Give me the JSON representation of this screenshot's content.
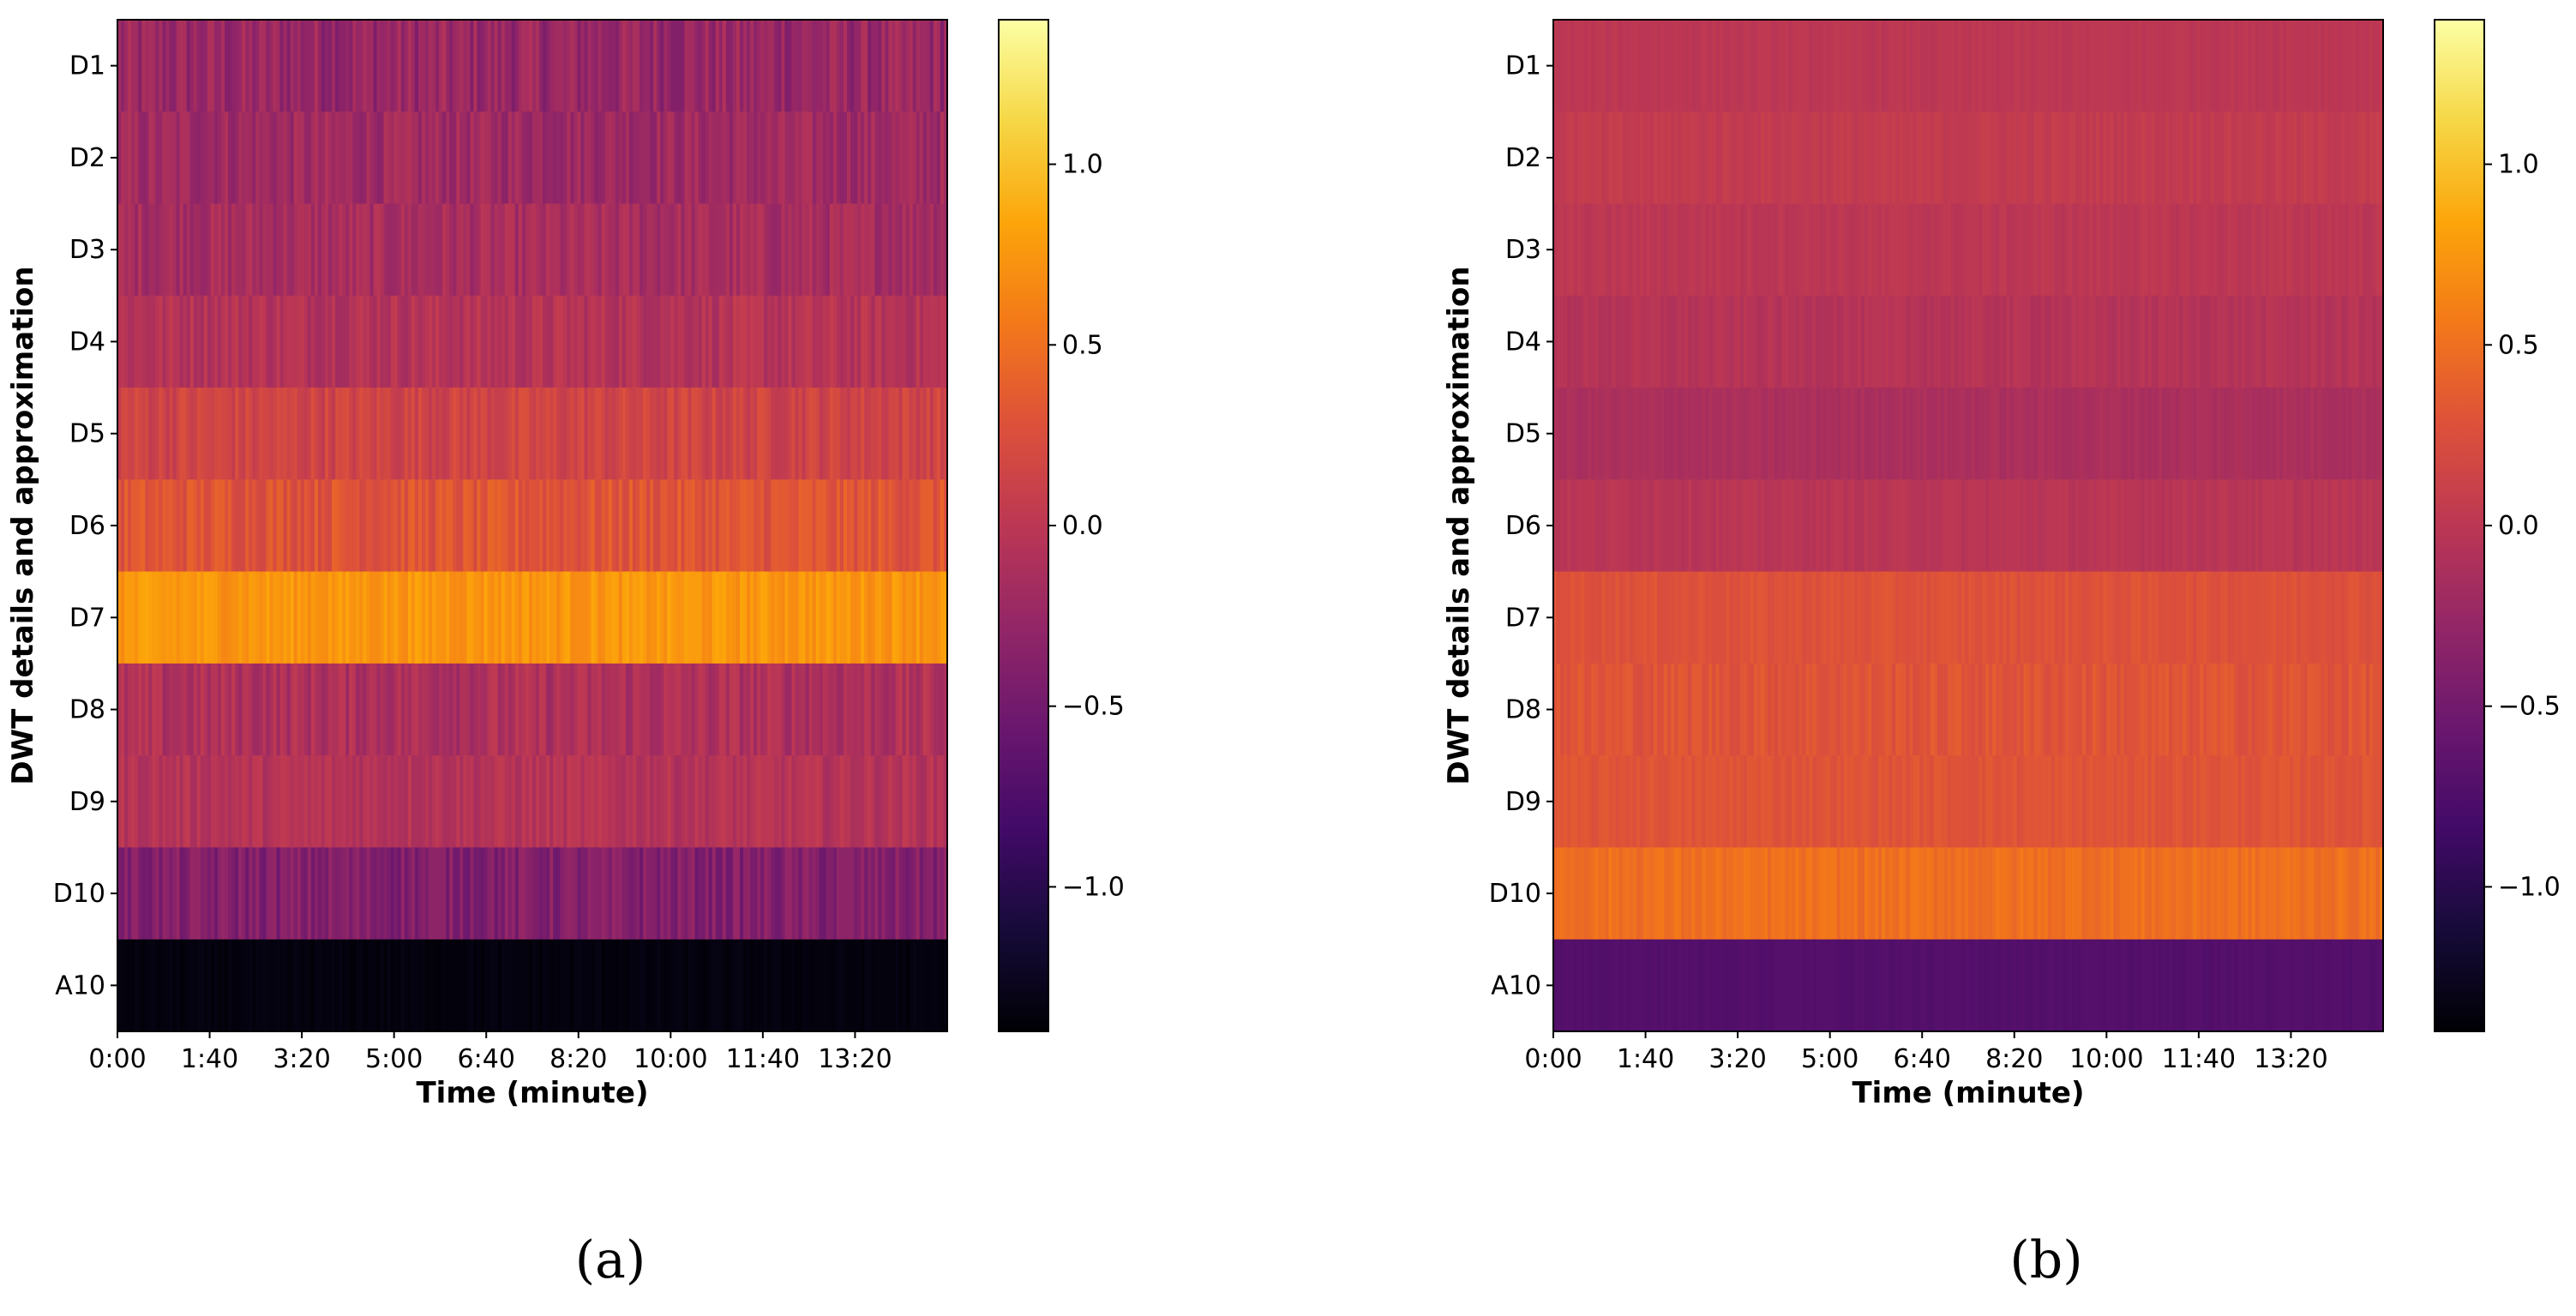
{
  "chart_data": [
    {
      "type": "heatmap",
      "panel_label": "(a)",
      "title": "",
      "xlabel": "Time (minute)",
      "ylabel": "DWT details and approximation",
      "x_ticks": [
        "0:00",
        "1:40",
        "3:20",
        "5:00",
        "6:40",
        "8:20",
        "10:00",
        "11:40",
        "13:20"
      ],
      "x_tick_seconds": [
        0,
        100,
        200,
        300,
        400,
        500,
        600,
        700,
        800
      ],
      "x_range_seconds": [
        0,
        900
      ],
      "rows": [
        "D1",
        "D2",
        "D3",
        "D4",
        "D5",
        "D6",
        "D7",
        "D8",
        "D9",
        "D10",
        "A10"
      ],
      "row_mean_values": [
        -0.25,
        -0.2,
        -0.15,
        -0.05,
        0.15,
        0.3,
        0.75,
        -0.1,
        -0.05,
        -0.4,
        -1.35
      ],
      "row_variability": [
        0.18,
        0.14,
        0.13,
        0.12,
        0.12,
        0.13,
        0.1,
        0.14,
        0.1,
        0.15,
        0.03
      ],
      "colorbar": {
        "colormap": "inferno",
        "vmin": -1.4,
        "vmax": 1.4,
        "ticks": [
          1.0,
          0.5,
          0.0,
          -0.5,
          -1.0
        ],
        "tick_labels": [
          "1.0",
          "0.5",
          "0.0",
          "−0.5",
          "−1.0"
        ]
      }
    },
    {
      "type": "heatmap",
      "panel_label": "(b)",
      "title": "",
      "xlabel": "Time (minute)",
      "ylabel": "DWT details and approximation",
      "x_ticks": [
        "0:00",
        "1:40",
        "3:20",
        "5:00",
        "6:40",
        "8:20",
        "10:00",
        "11:40",
        "13:20"
      ],
      "x_tick_seconds": [
        0,
        100,
        200,
        300,
        400,
        500,
        600,
        700,
        800
      ],
      "x_range_seconds": [
        0,
        900
      ],
      "rows": [
        "D1",
        "D2",
        "D3",
        "D4",
        "D5",
        "D6",
        "D7",
        "D8",
        "D9",
        "D10",
        "A10"
      ],
      "row_mean_values": [
        0.0,
        0.05,
        0.0,
        -0.05,
        -0.12,
        -0.02,
        0.28,
        0.3,
        0.3,
        0.5,
        -0.72
      ],
      "row_variability": [
        0.03,
        0.04,
        0.04,
        0.05,
        0.04,
        0.04,
        0.05,
        0.08,
        0.05,
        0.07,
        0.02
      ],
      "colorbar": {
        "colormap": "inferno",
        "vmin": -1.4,
        "vmax": 1.4,
        "ticks": [
          1.0,
          0.5,
          0.0,
          -0.5,
          -1.0
        ],
        "tick_labels": [
          "1.0",
          "0.5",
          "0.0",
          "−0.5",
          "−1.0"
        ]
      }
    }
  ]
}
